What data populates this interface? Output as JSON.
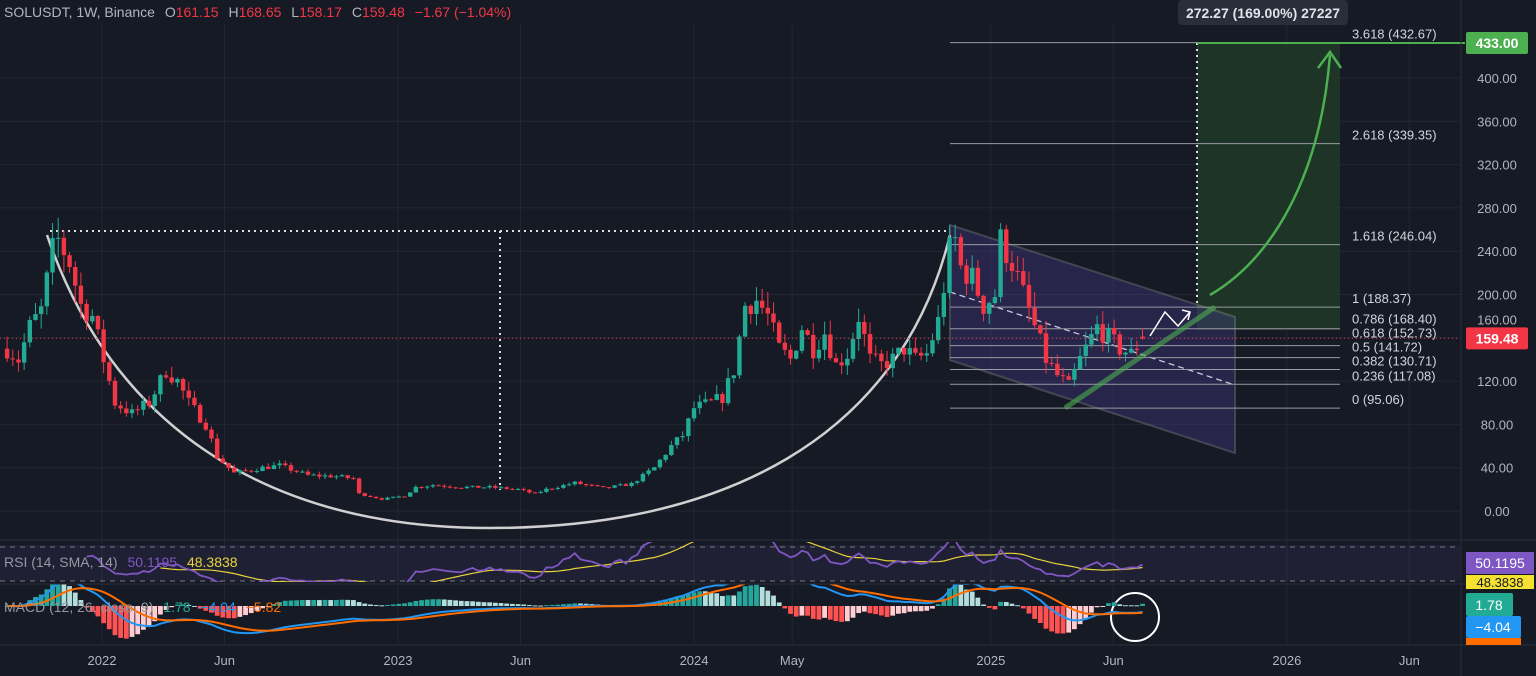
{
  "header": {
    "symbol": "SOLUSDT, 1W, Binance",
    "open_label": "O",
    "open": "161.15",
    "high_label": "H",
    "high": "168.65",
    "low_label": "L",
    "low": "158.17",
    "close_label": "C",
    "close": "159.48",
    "change": "−1.67 (−1.04%)"
  },
  "measure_tooltip": "272.27 (169.00%) 27227",
  "price_labels": {
    "target": "433.00",
    "current": "159.48"
  },
  "colors": {
    "background": "#161a25",
    "up": "#22ab94",
    "down": "#f23645",
    "target": "#4caf50",
    "rsi": "#7e57c2",
    "rsi_sma": "#e8d43a",
    "macd": "#2196f3",
    "signal": "#ff6d00"
  },
  "fib_levels": [
    {
      "label": "0 (95.06)",
      "value": 95.06
    },
    {
      "label": "0.236 (117.08)",
      "value": 117.08
    },
    {
      "label": "0.382 (130.71)",
      "value": 130.71
    },
    {
      "label": "0.5 (141.72)",
      "value": 141.72
    },
    {
      "label": "0.618 (152.73)",
      "value": 152.73
    },
    {
      "label": "0.786 (168.40)",
      "value": 168.4
    },
    {
      "label": "1 (188.37)",
      "value": 188.37
    },
    {
      "label": "1.618 (246.04)",
      "value": 246.04
    },
    {
      "label": "2.618 (339.35)",
      "value": 339.35
    },
    {
      "label": "3.618 (432.67)",
      "value": 432.67
    }
  ],
  "rsi": {
    "title": "RSI (14, SMA, 14)",
    "value": "50.1195",
    "sma": "48.3838"
  },
  "macd": {
    "title": "MACD (12, 26, close, 9)",
    "hist": "1.78",
    "macd": "−4.04",
    "signal": "−5.82"
  },
  "chart_data": {
    "type": "candlestick",
    "symbol": "SOLUSDT",
    "interval": "1W",
    "y_ticks": [
      "0.00",
      "40.00",
      "80.00",
      "120.00",
      "160.00",
      "200.00",
      "240.00",
      "280.00",
      "320.00",
      "360.00",
      "400.00"
    ],
    "ylim": [
      0,
      440
    ],
    "x_ticks": [
      {
        "label": "2022",
        "date": "2022-01-01"
      },
      {
        "label": "Jun",
        "date": "2022-06-01"
      },
      {
        "label": "2023",
        "date": "2023-01-01"
      },
      {
        "label": "Jun",
        "date": "2023-06-01"
      },
      {
        "label": "2024",
        "date": "2024-01-01"
      },
      {
        "label": "May",
        "date": "2024-05-01"
      },
      {
        "label": "2025",
        "date": "2025-01-01"
      },
      {
        "label": "Jun",
        "date": "2025-06-01"
      },
      {
        "label": "2026",
        "date": "2026-01-01"
      },
      {
        "label": "Jun",
        "date": "2026-06-01"
      }
    ],
    "approx_weekly_close": [
      [
        "2021-09-06",
        150
      ],
      [
        "2021-09-20",
        140
      ],
      [
        "2021-10-04",
        170
      ],
      [
        "2021-10-18",
        185
      ],
      [
        "2021-11-01",
        240
      ],
      [
        "2021-11-08",
        250
      ],
      [
        "2021-11-22",
        230
      ],
      [
        "2021-12-06",
        190
      ],
      [
        "2021-12-20",
        180
      ],
      [
        "2022-01-03",
        140
      ],
      [
        "2022-01-17",
        100
      ],
      [
        "2022-02-07",
        90
      ],
      [
        "2022-02-28",
        100
      ],
      [
        "2022-03-21",
        130
      ],
      [
        "2022-04-04",
        120
      ],
      [
        "2022-04-18",
        100
      ],
      [
        "2022-05-09",
        80
      ],
      [
        "2022-05-23",
        50
      ],
      [
        "2022-06-13",
        35
      ],
      [
        "2022-07-18",
        40
      ],
      [
        "2022-08-08",
        42
      ],
      [
        "2022-09-12",
        33
      ],
      [
        "2022-10-17",
        32
      ],
      [
        "2022-11-07",
        30
      ],
      [
        "2022-11-14",
        16
      ],
      [
        "2022-12-12",
        11
      ],
      [
        "2023-01-09",
        14
      ],
      [
        "2023-01-23",
        22
      ],
      [
        "2023-02-13",
        24
      ],
      [
        "2023-03-20",
        22
      ],
      [
        "2023-04-24",
        22
      ],
      [
        "2023-05-29",
        20
      ],
      [
        "2023-06-19",
        16
      ],
      [
        "2023-07-03",
        20
      ],
      [
        "2023-08-07",
        26
      ],
      [
        "2023-09-11",
        21
      ],
      [
        "2023-10-16",
        25
      ],
      [
        "2023-11-13",
        40
      ],
      [
        "2023-12-04",
        60
      ],
      [
        "2023-12-18",
        70
      ],
      [
        "2024-01-01",
        95
      ],
      [
        "2024-01-22",
        100
      ],
      [
        "2024-02-05",
        105
      ],
      [
        "2024-02-19",
        130
      ],
      [
        "2024-03-04",
        190
      ],
      [
        "2024-03-18",
        195
      ],
      [
        "2024-04-01",
        180
      ],
      [
        "2024-04-15",
        150
      ],
      [
        "2024-04-29",
        140
      ],
      [
        "2024-05-13",
        170
      ],
      [
        "2024-05-27",
        150
      ],
      [
        "2024-06-10",
        165
      ],
      [
        "2024-06-24",
        135
      ],
      [
        "2024-07-08",
        145
      ],
      [
        "2024-07-22",
        180
      ],
      [
        "2024-08-05",
        140
      ],
      [
        "2024-08-19",
        135
      ],
      [
        "2024-09-02",
        140
      ],
      [
        "2024-09-16",
        150
      ],
      [
        "2024-09-30",
        140
      ],
      [
        "2024-10-14",
        145
      ],
      [
        "2024-10-28",
        175
      ],
      [
        "2024-11-11",
        240
      ],
      [
        "2024-11-18",
        250
      ],
      [
        "2024-11-25",
        225
      ],
      [
        "2024-12-09",
        215
      ],
      [
        "2024-12-23",
        190
      ],
      [
        "2025-01-06",
        200
      ],
      [
        "2025-01-13",
        250
      ],
      [
        "2025-01-27",
        230
      ],
      [
        "2025-02-10",
        200
      ],
      [
        "2025-02-24",
        170
      ],
      [
        "2025-03-10",
        140
      ],
      [
        "2025-03-24",
        125
      ],
      [
        "2025-04-07",
        115
      ],
      [
        "2025-04-21",
        140
      ],
      [
        "2025-05-12",
        170
      ],
      [
        "2025-05-26",
        160
      ],
      [
        "2025-06-09",
        150
      ],
      [
        "2025-06-23",
        145
      ],
      [
        "2025-07-07",
        159.48
      ]
    ],
    "last_candle": {
      "open": 161.15,
      "high": 168.65,
      "low": 158.17,
      "close": 159.48
    },
    "target_price": 433.0,
    "current_price": 159.48
  }
}
